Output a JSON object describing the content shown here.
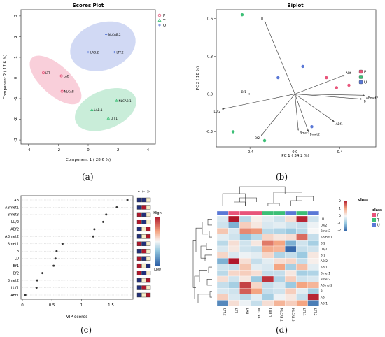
{
  "captions": {
    "a": "(a)",
    "b": "(b)",
    "c": "(c)",
    "d": "(d)"
  },
  "colors": {
    "P": "#e8547a",
    "T": "#3cbf76",
    "U": "#5a78d6",
    "heat_high": "#b0172b",
    "heat_low": "#2c5fa5"
  },
  "chart_data": [
    {
      "type": "scatter",
      "title": "Scores Plot",
      "xlabel": "Component 1 ( 28.6 %)",
      "ylabel": "Component 2 ( 17.6 %)",
      "xlim": [
        -4.5,
        4.5
      ],
      "ylim": [
        -3.2,
        3.3
      ],
      "xticks": [
        -4,
        -2,
        0,
        2,
        4
      ],
      "yticks": [
        -3,
        -2,
        -1,
        0,
        1,
        2,
        3
      ],
      "legend": [
        "P",
        "T",
        "U"
      ],
      "points": [
        {
          "label": "NLCAB.2",
          "x": 1.2,
          "y": 2.1,
          "group": "U"
        },
        {
          "label": "LAB.2",
          "x": 0.0,
          "y": 1.25,
          "group": "U"
        },
        {
          "label": "LTT.2",
          "x": 1.75,
          "y": 1.25,
          "group": "U"
        },
        {
          "label": "LTT",
          "x": -3.0,
          "y": 0.25,
          "group": "P"
        },
        {
          "label": "LAB",
          "x": -1.8,
          "y": 0.1,
          "group": "P"
        },
        {
          "label": "NLCAB",
          "x": -1.75,
          "y": -0.65,
          "group": "P"
        },
        {
          "label": "NLCAB.1",
          "x": 1.9,
          "y": -1.1,
          "group": "T"
        },
        {
          "label": "LAB.1",
          "x": 0.25,
          "y": -1.55,
          "group": "T"
        },
        {
          "label": "LTT.1",
          "x": 1.35,
          "y": -1.95,
          "group": "T"
        }
      ]
    },
    {
      "type": "scatter",
      "title": "Biplot",
      "xlabel": "PC 1 ( 34.2 %)",
      "ylabel": "PC 2 ( 18 %)",
      "xlim": [
        -0.7,
        0.72
      ],
      "ylim": [
        -0.42,
        0.67
      ],
      "xticks": [
        -0.4,
        0.0,
        0.4
      ],
      "yticks": [
        -0.3,
        0.0,
        0.3,
        0.6
      ],
      "legend": [
        "P",
        "T",
        "U"
      ],
      "points": [
        {
          "x": -0.47,
          "y": 0.63,
          "group": "T"
        },
        {
          "x": -0.55,
          "y": -0.3,
          "group": "T"
        },
        {
          "x": -0.27,
          "y": -0.37,
          "group": "T"
        },
        {
          "x": -0.15,
          "y": 0.13,
          "group": "U"
        },
        {
          "x": 0.07,
          "y": 0.22,
          "group": "U"
        },
        {
          "x": 0.15,
          "y": -0.26,
          "group": "U"
        },
        {
          "x": 0.28,
          "y": 0.13,
          "group": "P"
        },
        {
          "x": 0.37,
          "y": 0.05,
          "group": "P"
        },
        {
          "x": 0.48,
          "y": 0.07,
          "group": "P"
        }
      ],
      "loadings": [
        {
          "name": "LU",
          "x": -0.27,
          "y": 0.58
        },
        {
          "name": "LU/2",
          "x": -0.65,
          "y": -0.12
        },
        {
          "name": "Bf1",
          "x": -0.42,
          "y": 0.0
        },
        {
          "name": "Bf2",
          "x": -0.3,
          "y": -0.33
        },
        {
          "name": "Bmet1",
          "x": 0.03,
          "y": -0.29
        },
        {
          "name": "Bmet2",
          "x": 0.12,
          "y": -0.3
        },
        {
          "name": "ABf1",
          "x": 0.35,
          "y": -0.22
        },
        {
          "name": "ABf",
          "x": 0.44,
          "y": 0.15
        },
        {
          "name": "ABmet2",
          "x": 0.62,
          "y": -0.01
        },
        {
          "name": "B",
          "x": 0.6,
          "y": -0.04
        }
      ]
    },
    {
      "type": "scatter",
      "subtype": "vip_dot_plot",
      "xlabel": "VIP scores",
      "xlim": [
        0,
        1.85
      ],
      "xticks": [
        0,
        0.5,
        1.0,
        1.5
      ],
      "groups": [
        "P",
        "T",
        "U"
      ],
      "color_scale": {
        "high": "High",
        "low": "Low"
      },
      "rows": [
        {
          "name": "AB",
          "vip": 1.78,
          "cells": [
            "low",
            "low",
            "mid"
          ]
        },
        {
          "name": "ABmet1",
          "vip": 1.6,
          "cells": [
            "low",
            "high",
            "mid"
          ]
        },
        {
          "name": "Bmet3",
          "vip": 1.42,
          "cells": [
            "high",
            "low",
            "mid"
          ]
        },
        {
          "name": "LU/2",
          "vip": 1.37,
          "cells": [
            "high",
            "low",
            "mid"
          ]
        },
        {
          "name": "ABf2",
          "vip": 1.22,
          "cells": [
            "low",
            "mid",
            "high"
          ]
        },
        {
          "name": "ABmet2",
          "vip": 1.2,
          "cells": [
            "low",
            "mid",
            "high"
          ]
        },
        {
          "name": "Bmet1",
          "vip": 0.68,
          "cells": [
            "high",
            "low",
            "mid"
          ]
        },
        {
          "name": "B",
          "vip": 0.58,
          "cells": [
            "low",
            "high",
            "mid"
          ]
        },
        {
          "name": "LU",
          "vip": 0.56,
          "cells": [
            "high",
            "low",
            "mid"
          ]
        },
        {
          "name": "Bf1",
          "vip": 0.53,
          "cells": [
            "high",
            "mid",
            "low"
          ]
        },
        {
          "name": "Bf2",
          "vip": 0.34,
          "cells": [
            "high",
            "low",
            "mid"
          ]
        },
        {
          "name": "Bmet2",
          "vip": 0.25,
          "cells": [
            "low",
            "mid",
            "high"
          ]
        },
        {
          "name": "LUf1",
          "vip": 0.24,
          "cells": [
            "low",
            "high",
            "mid"
          ]
        },
        {
          "name": "ABf1",
          "vip": 0.05,
          "cells": [
            "low",
            "mid",
            "high"
          ]
        }
      ]
    },
    {
      "type": "heatmap",
      "columns": [
        "LTT.2",
        "LTT",
        "LAB",
        "NLCAB",
        "LAB.1",
        "NLCAB.1",
        "NLCAB.2",
        "LTT.1",
        "LTT.2"
      ],
      "column_class": [
        "U",
        "P",
        "P",
        "P",
        "T",
        "T",
        "U",
        "T",
        "U"
      ],
      "rows": [
        "LU",
        "LU/2",
        "Bmet3",
        "ABmet1",
        "Bf2",
        "LU/2",
        "Bf1",
        "ABf2",
        "ABf1",
        "Bmet1",
        "Bmet2",
        "ABmet2",
        "B",
        "AB",
        "ABf1"
      ],
      "values": [
        [
          -0.3,
          2.0,
          -0.6,
          0.1,
          -0.2,
          -0.4,
          0.3,
          1.9,
          -0.4
        ],
        [
          -0.4,
          -1.2,
          0.5,
          0.2,
          -0.3,
          -0.2,
          -0.4,
          -0.5,
          -0.1
        ],
        [
          0.6,
          -0.3,
          1.2,
          1.1,
          -0.6,
          -0.7,
          -0.9,
          -0.6,
          0.0
        ],
        [
          -0.2,
          -0.4,
          -1.0,
          -0.6,
          0.4,
          0.2,
          0.3,
          1.4,
          -0.5
        ],
        [
          -0.6,
          0.3,
          -0.4,
          0.2,
          1.3,
          1.0,
          -1.2,
          -0.4,
          -0.8
        ],
        [
          -0.3,
          0.2,
          -0.4,
          -0.5,
          0.9,
          0.8,
          -1.9,
          -0.5,
          -0.4
        ],
        [
          0.4,
          -0.3,
          -0.1,
          -0.2,
          0.4,
          -0.7,
          -0.5,
          -0.9,
          0.2
        ],
        [
          -1.2,
          2.1,
          0.3,
          -0.5,
          -0.2,
          0.3,
          0.4,
          -0.5,
          0.1
        ],
        [
          -0.4,
          -0.5,
          0.6,
          -0.2,
          -0.3,
          1.0,
          -0.8,
          0.7,
          -0.2
        ],
        [
          -0.6,
          0.4,
          0.5,
          0.3,
          -0.5,
          -0.5,
          0.2,
          -0.8,
          -0.7
        ],
        [
          0.3,
          -0.4,
          0.2,
          -0.9,
          1.8,
          -0.7,
          0.5,
          -0.4,
          -0.3
        ],
        [
          -0.5,
          -0.8,
          1.7,
          0.4,
          -0.5,
          -0.3,
          -0.9,
          1.0,
          0.8
        ],
        [
          -0.3,
          -0.4,
          1.5,
          1.0,
          -0.5,
          -0.4,
          0.5,
          -0.2,
          -0.8
        ],
        [
          0.5,
          -0.3,
          -0.6,
          -0.2,
          -0.8,
          -0.1,
          0.2,
          -0.5,
          1.9
        ],
        [
          -1.6,
          0.3,
          -0.1,
          -0.5,
          0.3,
          0.8,
          0.5,
          1.0,
          -1.7
        ]
      ],
      "color_range": [
        -2,
        2
      ],
      "colorbar_ticks": [
        2,
        1,
        0,
        -1,
        -2
      ],
      "legend_title": "class",
      "legend": [
        "P",
        "T",
        "U"
      ]
    }
  ]
}
